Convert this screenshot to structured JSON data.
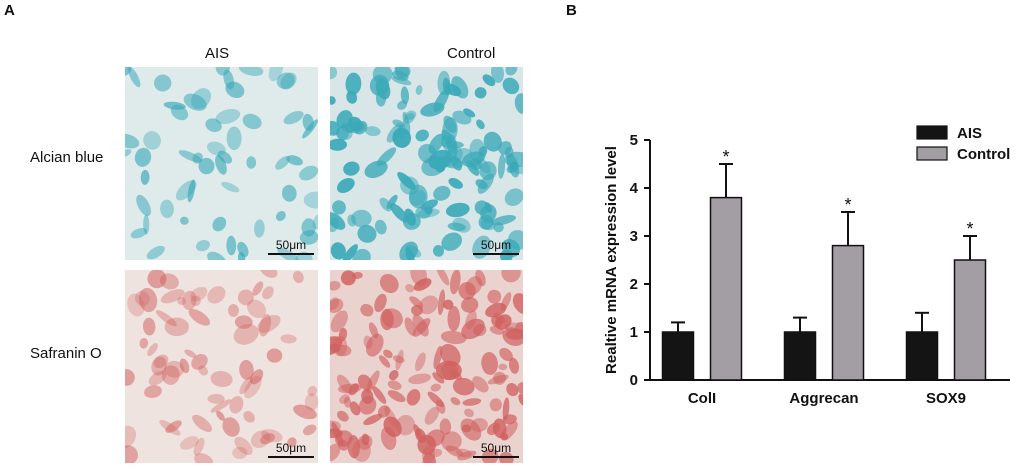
{
  "panel_a": {
    "letter": "A",
    "columns": [
      "AIS",
      "Control"
    ],
    "rows": [
      "Alcian blue",
      "Safranin O"
    ],
    "scale_bar_label": "50μm"
  },
  "panel_b": {
    "letter": "B"
  },
  "colors": {
    "ais": "#141414",
    "control": "#a39ea4",
    "alcian": "#3aa9b8",
    "safranin": "#d0605f"
  },
  "chart_data": {
    "type": "bar",
    "categories": [
      "ColI",
      "Aggrecan",
      "SOX9"
    ],
    "series": [
      {
        "name": "AIS",
        "values": [
          1.0,
          1.0,
          1.0
        ],
        "errors": [
          0.2,
          0.3,
          0.4
        ],
        "color": "#141414"
      },
      {
        "name": "Control",
        "values": [
          3.8,
          2.8,
          2.5
        ],
        "errors": [
          0.7,
          0.7,
          0.5
        ],
        "color": "#a39ea4",
        "significance": [
          "*",
          "*",
          "*"
        ]
      }
    ],
    "ylabel": "Realtive mRNA expression level",
    "xlabel": "",
    "ylim": [
      0,
      5
    ],
    "yticks": [
      0,
      1,
      2,
      3,
      4,
      5
    ],
    "legend_position": "top-right",
    "grid": false
  }
}
